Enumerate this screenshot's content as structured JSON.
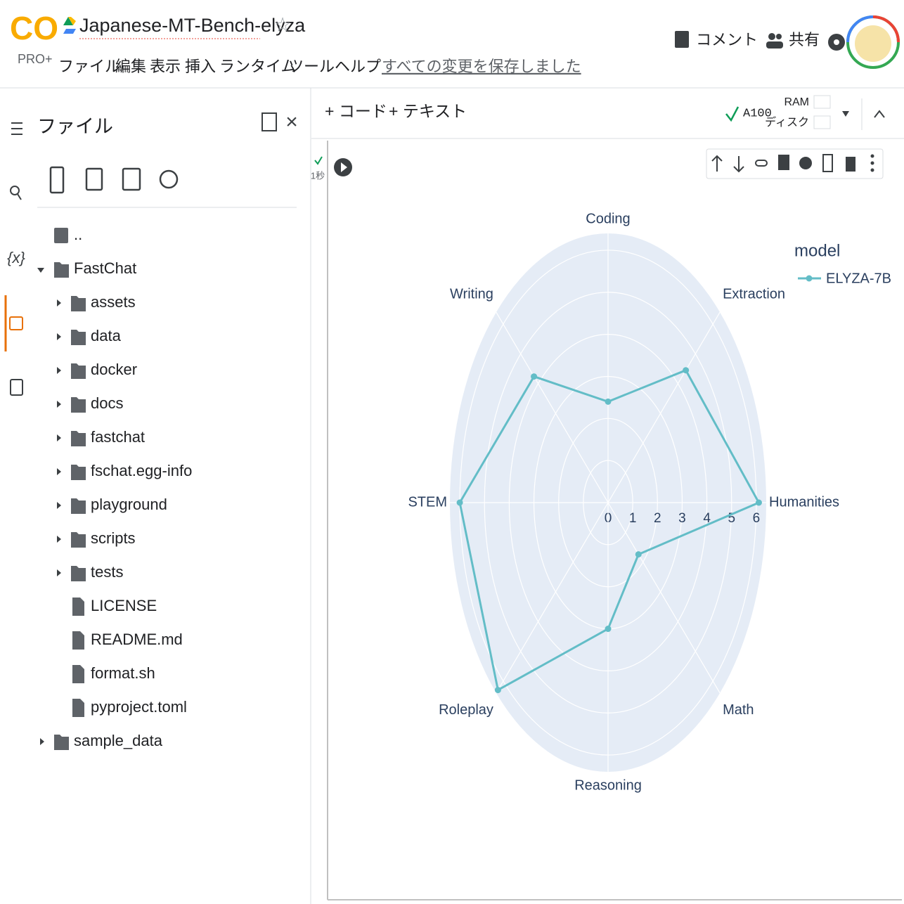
{
  "header": {
    "logo": "CO",
    "plan": "PRO+",
    "title": "Japanese-MT-Bench-elyza",
    "menu": [
      "ファイル",
      "編集",
      "表示",
      "挿入",
      "ランタイム",
      "ツール",
      "ヘルプ"
    ],
    "save_status": "すべての変更を保存しました",
    "comment": "コメント",
    "share": "共有"
  },
  "sidebar": {
    "variables_icon": "{x}",
    "title": "ファイル",
    "tree": [
      "..",
      "FastChat",
      "assets",
      "data",
      "docker",
      "docs",
      "fastchat",
      "fschat.egg-info",
      "playground",
      "scripts",
      "tests",
      "LICENSE",
      "README.md",
      "format.sh",
      "pyproject.toml",
      "sample_data"
    ]
  },
  "toolbar": {
    "add_code": "+ コード",
    "add_text": "+ テキスト",
    "runtime": "A100",
    "ram": "RAM",
    "disk": "ディスク"
  },
  "cell": {
    "duration": "1秒"
  },
  "chart_data": {
    "type": "radar",
    "categories": [
      "Coding",
      "Extraction",
      "Humanities",
      "Math",
      "Reasoning",
      "Roleplay",
      "STEM",
      "Writing"
    ],
    "series": [
      {
        "name": "ELYZA-7B",
        "color": "#63bdc7",
        "values": [
          2.4,
          4.45,
          6.1,
          1.74,
          3.0,
          6.3,
          6.0,
          4.24
        ]
      }
    ],
    "rlim": [
      0,
      6.4
    ],
    "rticks": [
      0,
      1,
      2,
      3,
      4,
      5,
      6
    ],
    "legend_title": "model",
    "grid": true
  }
}
